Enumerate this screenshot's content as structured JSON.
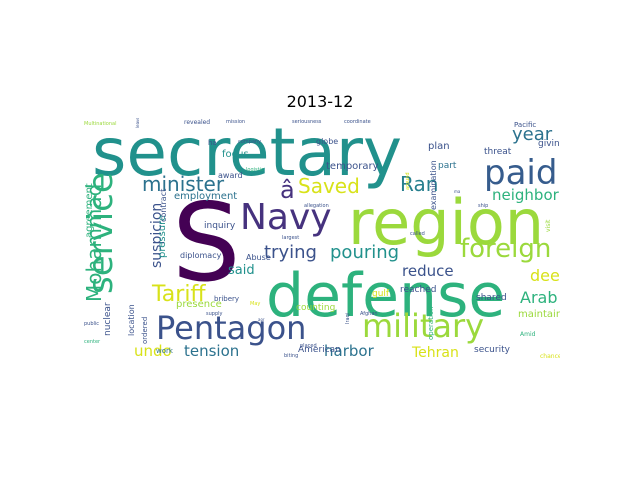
{
  "title": "2013-12",
  "palette": {
    "dark_purple": "#440154",
    "indigo": "#3b528b",
    "teal": "#21918c",
    "green": "#2db27d",
    "lime": "#9bd93c",
    "yellow": "#d8e219"
  },
  "words": [
    {
      "text": "secretary",
      "color": "#21918c",
      "weight": 1.0
    },
    {
      "text": "S",
      "color": "#440154",
      "weight": 0.95
    },
    {
      "text": "region",
      "color": "#9bd93c",
      "weight": 0.8
    },
    {
      "text": "defense",
      "color": "#2db27d",
      "weight": 0.8
    },
    {
      "text": "Navy",
      "color": "#46327e",
      "weight": 0.55
    },
    {
      "text": "paid",
      "color": "#365c8d",
      "weight": 0.5
    },
    {
      "text": "service",
      "color": "#2db27d",
      "weight": 0.5
    },
    {
      "text": "Pentagon",
      "color": "#3b528b",
      "weight": 0.5
    },
    {
      "text": "military",
      "color": "#9bd93c",
      "weight": 0.5
    },
    {
      "text": "minister",
      "color": "#2c728e",
      "weight": 0.35
    },
    {
      "text": "Ran",
      "color": "#277f8e",
      "weight": 0.35
    },
    {
      "text": "foreign",
      "color": "#9bd93c",
      "weight": 0.35
    },
    {
      "text": "Saved",
      "color": "#d8e219",
      "weight": 0.3
    },
    {
      "text": "â",
      "color": "#46327e",
      "weight": 0.3
    },
    {
      "text": "Mohammad",
      "color": "#2db27d",
      "weight": 0.3
    },
    {
      "text": "trying",
      "color": "#3b528b",
      "weight": 0.3
    },
    {
      "text": "Tariff",
      "color": "#d8e219",
      "weight": 0.3
    },
    {
      "text": "pouring",
      "color": "#21918c",
      "weight": 0.25
    },
    {
      "text": "year",
      "color": "#2c728e",
      "weight": 0.25
    },
    {
      "text": "neighbor",
      "color": "#2db27d",
      "weight": 0.2
    },
    {
      "text": "suspicion",
      "color": "#3b528b",
      "weight": 0.2
    },
    {
      "text": "Arab",
      "color": "#2db27d",
      "weight": 0.2
    },
    {
      "text": "deep",
      "color": "#d8e219",
      "weight": 0.2
    },
    {
      "text": "reduce",
      "color": "#3b528b",
      "weight": 0.2
    },
    {
      "text": "tension",
      "color": "#2c728e",
      "weight": 0.2
    },
    {
      "text": "harbor",
      "color": "#2c728e",
      "weight": 0.2
    },
    {
      "text": "undo",
      "color": "#d8e219",
      "weight": 0.2
    },
    {
      "text": "Tehran",
      "color": "#d8e219",
      "weight": 0.18
    },
    {
      "text": "said",
      "color": "#21918c",
      "weight": 0.15
    },
    {
      "text": "focus",
      "color": "#21918c",
      "weight": 0.12
    },
    {
      "text": "employment",
      "color": "#2c728e",
      "weight": 0.12
    },
    {
      "text": "temporary",
      "color": "#3b528b",
      "weight": 0.12
    },
    {
      "text": "pressure",
      "color": "#21918c",
      "weight": 0.12
    },
    {
      "text": "agreement",
      "color": "#2db27d",
      "weight": 0.12
    },
    {
      "text": "plan",
      "color": "#3b528b",
      "weight": 0.12
    },
    {
      "text": "part",
      "color": "#2c728e",
      "weight": 0.12
    },
    {
      "text": "giving",
      "color": "#3b528b",
      "weight": 0.12
    },
    {
      "text": "threat",
      "color": "#3b528b",
      "weight": 0.12
    },
    {
      "text": "maintain",
      "color": "#9bd93c",
      "weight": 0.12
    },
    {
      "text": "shared",
      "color": "#3b528b",
      "weight": 0.12
    },
    {
      "text": "security",
      "color": "#3b528b",
      "weight": 0.12
    },
    {
      "text": "American",
      "color": "#3b528b",
      "weight": 0.12
    },
    {
      "text": "presence",
      "color": "#9bd93c",
      "weight": 0.12
    },
    {
      "text": "counting",
      "color": "#9bd93c",
      "weight": 0.1
    },
    {
      "text": "nuclear",
      "color": "#3b528b",
      "weight": 0.1
    },
    {
      "text": "reached",
      "color": "#3b528b",
      "weight": 0.1
    },
    {
      "text": "gulf",
      "color": "#d8e219",
      "weight": 0.1
    },
    {
      "text": "inquiry",
      "color": "#3b528b",
      "weight": 0.1
    },
    {
      "text": "award",
      "color": "#3b528b",
      "weight": 0.1
    },
    {
      "text": "diplomacy",
      "color": "#3b528b",
      "weight": 0.08
    },
    {
      "text": "Abuse",
      "color": "#3b528b",
      "weight": 0.08
    },
    {
      "text": "location",
      "color": "#3b528b",
      "weight": 0.08
    },
    {
      "text": "contract",
      "color": "#3b528b",
      "weight": 0.08
    },
    {
      "text": "ordered",
      "color": "#3b528b",
      "weight": 0.08
    },
    {
      "text": "work",
      "color": "#2c728e",
      "weight": 0.08
    },
    {
      "text": "bribery",
      "color": "#3b528b",
      "weight": 0.08
    },
    {
      "text": "examination",
      "color": "#3b528b",
      "weight": 0.08
    },
    {
      "text": "operation",
      "color": "#2db27d",
      "weight": 0.08
    },
    {
      "text": "Pacific",
      "color": "#3b528b",
      "weight": 0.08
    },
    {
      "text": "visit",
      "color": "#9bd93c",
      "weight": 0.06
    },
    {
      "text": "chance",
      "color": "#d8e219",
      "weight": 0.06
    },
    {
      "text": "Amid",
      "color": "#2db27d",
      "weight": 0.06
    },
    {
      "text": "globe",
      "color": "#3b528b",
      "weight": 0.08
    },
    {
      "text": "ha",
      "color": "#3b528b",
      "weight": 0.06
    },
    {
      "text": "company",
      "color": "#3b528b",
      "weight": 0.05
    },
    {
      "text": "logistic",
      "color": "#2db27d",
      "weight": 0.05
    },
    {
      "text": "allegation",
      "color": "#3b528b",
      "weight": 0.05
    },
    {
      "text": "called",
      "color": "#3b528b",
      "weight": 0.05
    },
    {
      "text": "biting",
      "color": "#3b528b",
      "weight": 0.05
    },
    {
      "text": "placed",
      "color": "#3b528b",
      "weight": 0.05
    },
    {
      "text": "Afghan",
      "color": "#3b528b",
      "weight": 0.05
    },
    {
      "text": "center",
      "color": "#2db27d",
      "weight": 0.05
    },
    {
      "text": "public",
      "color": "#3b528b",
      "weight": 0.04
    },
    {
      "text": "supply",
      "color": "#3b528b",
      "weight": 0.04
    },
    {
      "text": "largest",
      "color": "#3b528b",
      "weight": 0.04
    },
    {
      "text": "May",
      "color": "#d8e219",
      "weight": 0.04
    },
    {
      "text": "Iraqi",
      "color": "#3b528b",
      "weight": 0.04
    },
    {
      "text": "ship",
      "color": "#3b528b",
      "weight": 0.04
    },
    {
      "text": "ma",
      "color": "#3b528b",
      "weight": 0.04
    },
    {
      "text": "around",
      "color": "#d8e219",
      "weight": 0.04
    },
    {
      "text": "revealed",
      "color": "#3b528b",
      "weight": 0.05
    },
    {
      "text": "mission",
      "color": "#3b528b",
      "weight": 0.04
    },
    {
      "text": "seriousness",
      "color": "#3b528b",
      "weight": 0.04
    },
    {
      "text": "coordinate",
      "color": "#3b528b",
      "weight": 0.04
    },
    {
      "text": "Multinational",
      "color": "#9bd93c",
      "weight": 0.04
    },
    {
      "text": "leave",
      "color": "#3b528b",
      "weight": 0.03
    },
    {
      "text": "aor",
      "color": "#3b528b",
      "weight": 0.03
    }
  ]
}
